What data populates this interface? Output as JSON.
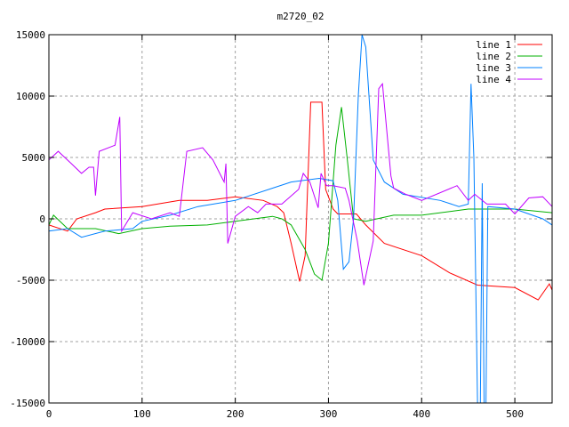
{
  "chart_data": {
    "type": "line",
    "title": "m2720_02",
    "xlabel": "",
    "ylabel": "",
    "xlim": [
      0,
      540
    ],
    "ylim": [
      -15000,
      15000
    ],
    "xticks": [
      "0",
      "100",
      "200",
      "300",
      "400",
      "500"
    ],
    "xtick_values": [
      0,
      100,
      200,
      300,
      400,
      500
    ],
    "yticks": [
      "15000",
      "10000",
      "5000",
      "0",
      "-5000",
      "-10000",
      "-15000"
    ],
    "ytick_values": [
      15000,
      10000,
      5000,
      0,
      -5000,
      -10000,
      -15000
    ],
    "grid": true,
    "legend_position": "top-right",
    "series": [
      {
        "name": "line 1",
        "color": "#ff0000",
        "points": [
          [
            0,
            -500
          ],
          [
            20,
            -1000
          ],
          [
            30,
            0
          ],
          [
            50,
            500
          ],
          [
            60,
            800
          ],
          [
            100,
            1000
          ],
          [
            140,
            1500
          ],
          [
            170,
            1500
          ],
          [
            200,
            1800
          ],
          [
            230,
            1500
          ],
          [
            245,
            1000
          ],
          [
            252,
            500
          ],
          [
            260,
            -2000
          ],
          [
            269,
            -5100
          ],
          [
            275,
            -3000
          ],
          [
            281,
            9500
          ],
          [
            293,
            9500
          ],
          [
            297,
            2400
          ],
          [
            305,
            800
          ],
          [
            310,
            400
          ],
          [
            330,
            400
          ],
          [
            340,
            -500
          ],
          [
            360,
            -2000
          ],
          [
            400,
            -3000
          ],
          [
            430,
            -4400
          ],
          [
            460,
            -5400
          ],
          [
            500,
            -5600
          ],
          [
            525,
            -6600
          ],
          [
            537,
            -5300
          ],
          [
            540,
            -5800
          ]
        ]
      },
      {
        "name": "line 2",
        "color": "#00b000",
        "points": [
          [
            0,
            -500
          ],
          [
            5,
            300
          ],
          [
            20,
            -800
          ],
          [
            50,
            -800
          ],
          [
            75,
            -1200
          ],
          [
            100,
            -800
          ],
          [
            130,
            -600
          ],
          [
            170,
            -500
          ],
          [
            200,
            -200
          ],
          [
            220,
            0
          ],
          [
            240,
            200
          ],
          [
            250,
            0
          ],
          [
            260,
            -500
          ],
          [
            275,
            -2500
          ],
          [
            285,
            -4500
          ],
          [
            293,
            -5000
          ],
          [
            300,
            -2000
          ],
          [
            308,
            6000
          ],
          [
            314,
            9100
          ],
          [
            320,
            5000
          ],
          [
            327,
            0
          ],
          [
            340,
            -200
          ],
          [
            370,
            300
          ],
          [
            400,
            300
          ],
          [
            450,
            800
          ],
          [
            500,
            800
          ],
          [
            540,
            500
          ]
        ]
      },
      {
        "name": "line 3",
        "color": "#0080ff",
        "points": [
          [
            0,
            -1000
          ],
          [
            20,
            -800
          ],
          [
            35,
            -1500
          ],
          [
            60,
            -1000
          ],
          [
            90,
            -800
          ],
          [
            100,
            -200
          ],
          [
            130,
            300
          ],
          [
            160,
            1000
          ],
          [
            200,
            1500
          ],
          [
            240,
            2500
          ],
          [
            260,
            3000
          ],
          [
            290,
            3300
          ],
          [
            305,
            3100
          ],
          [
            310,
            1500
          ],
          [
            316,
            -4100
          ],
          [
            322,
            -3500
          ],
          [
            327,
            0
          ],
          [
            332,
            10000
          ],
          [
            336,
            15000
          ],
          [
            340,
            14000
          ],
          [
            348,
            4800
          ],
          [
            360,
            3000
          ],
          [
            380,
            2000
          ],
          [
            420,
            1500
          ],
          [
            440,
            1000
          ],
          [
            450,
            1200
          ],
          [
            453,
            11000
          ],
          [
            456,
            5000
          ],
          [
            460,
            -15000
          ],
          [
            463,
            -15000
          ],
          [
            465,
            2900
          ],
          [
            467,
            -15000
          ],
          [
            469,
            -15000
          ],
          [
            471,
            1000
          ],
          [
            500,
            800
          ],
          [
            530,
            0
          ],
          [
            540,
            -500
          ]
        ]
      },
      {
        "name": "line 4",
        "color": "#c000ff",
        "points": [
          [
            0,
            4800
          ],
          [
            10,
            5500
          ],
          [
            24,
            4500
          ],
          [
            35,
            3700
          ],
          [
            43,
            4200
          ],
          [
            48,
            4200
          ],
          [
            50,
            1900
          ],
          [
            54,
            5500
          ],
          [
            71,
            6000
          ],
          [
            76,
            8300
          ],
          [
            78,
            -1000
          ],
          [
            90,
            500
          ],
          [
            110,
            0
          ],
          [
            130,
            500
          ],
          [
            140,
            200
          ],
          [
            148,
            5500
          ],
          [
            165,
            5800
          ],
          [
            176,
            4800
          ],
          [
            188,
            3000
          ],
          [
            190,
            4500
          ],
          [
            192,
            -2000
          ],
          [
            200,
            200
          ],
          [
            214,
            1000
          ],
          [
            224,
            500
          ],
          [
            233,
            1200
          ],
          [
            250,
            1200
          ],
          [
            268,
            2400
          ],
          [
            273,
            3700
          ],
          [
            280,
            3000
          ],
          [
            289,
            900
          ],
          [
            292,
            3700
          ],
          [
            298,
            2700
          ],
          [
            305,
            2700
          ],
          [
            318,
            2500
          ],
          [
            322,
            1500
          ],
          [
            331,
            -1800
          ],
          [
            338,
            -5400
          ],
          [
            348,
            -1800
          ],
          [
            354,
            10600
          ],
          [
            358,
            11000
          ],
          [
            367,
            3500
          ],
          [
            370,
            2500
          ],
          [
            383,
            2000
          ],
          [
            400,
            1500
          ],
          [
            438,
            2700
          ],
          [
            450,
            1500
          ],
          [
            457,
            2000
          ],
          [
            470,
            1200
          ],
          [
            490,
            1200
          ],
          [
            500,
            400
          ],
          [
            515,
            1700
          ],
          [
            530,
            1800
          ],
          [
            540,
            1000
          ]
        ]
      }
    ]
  }
}
